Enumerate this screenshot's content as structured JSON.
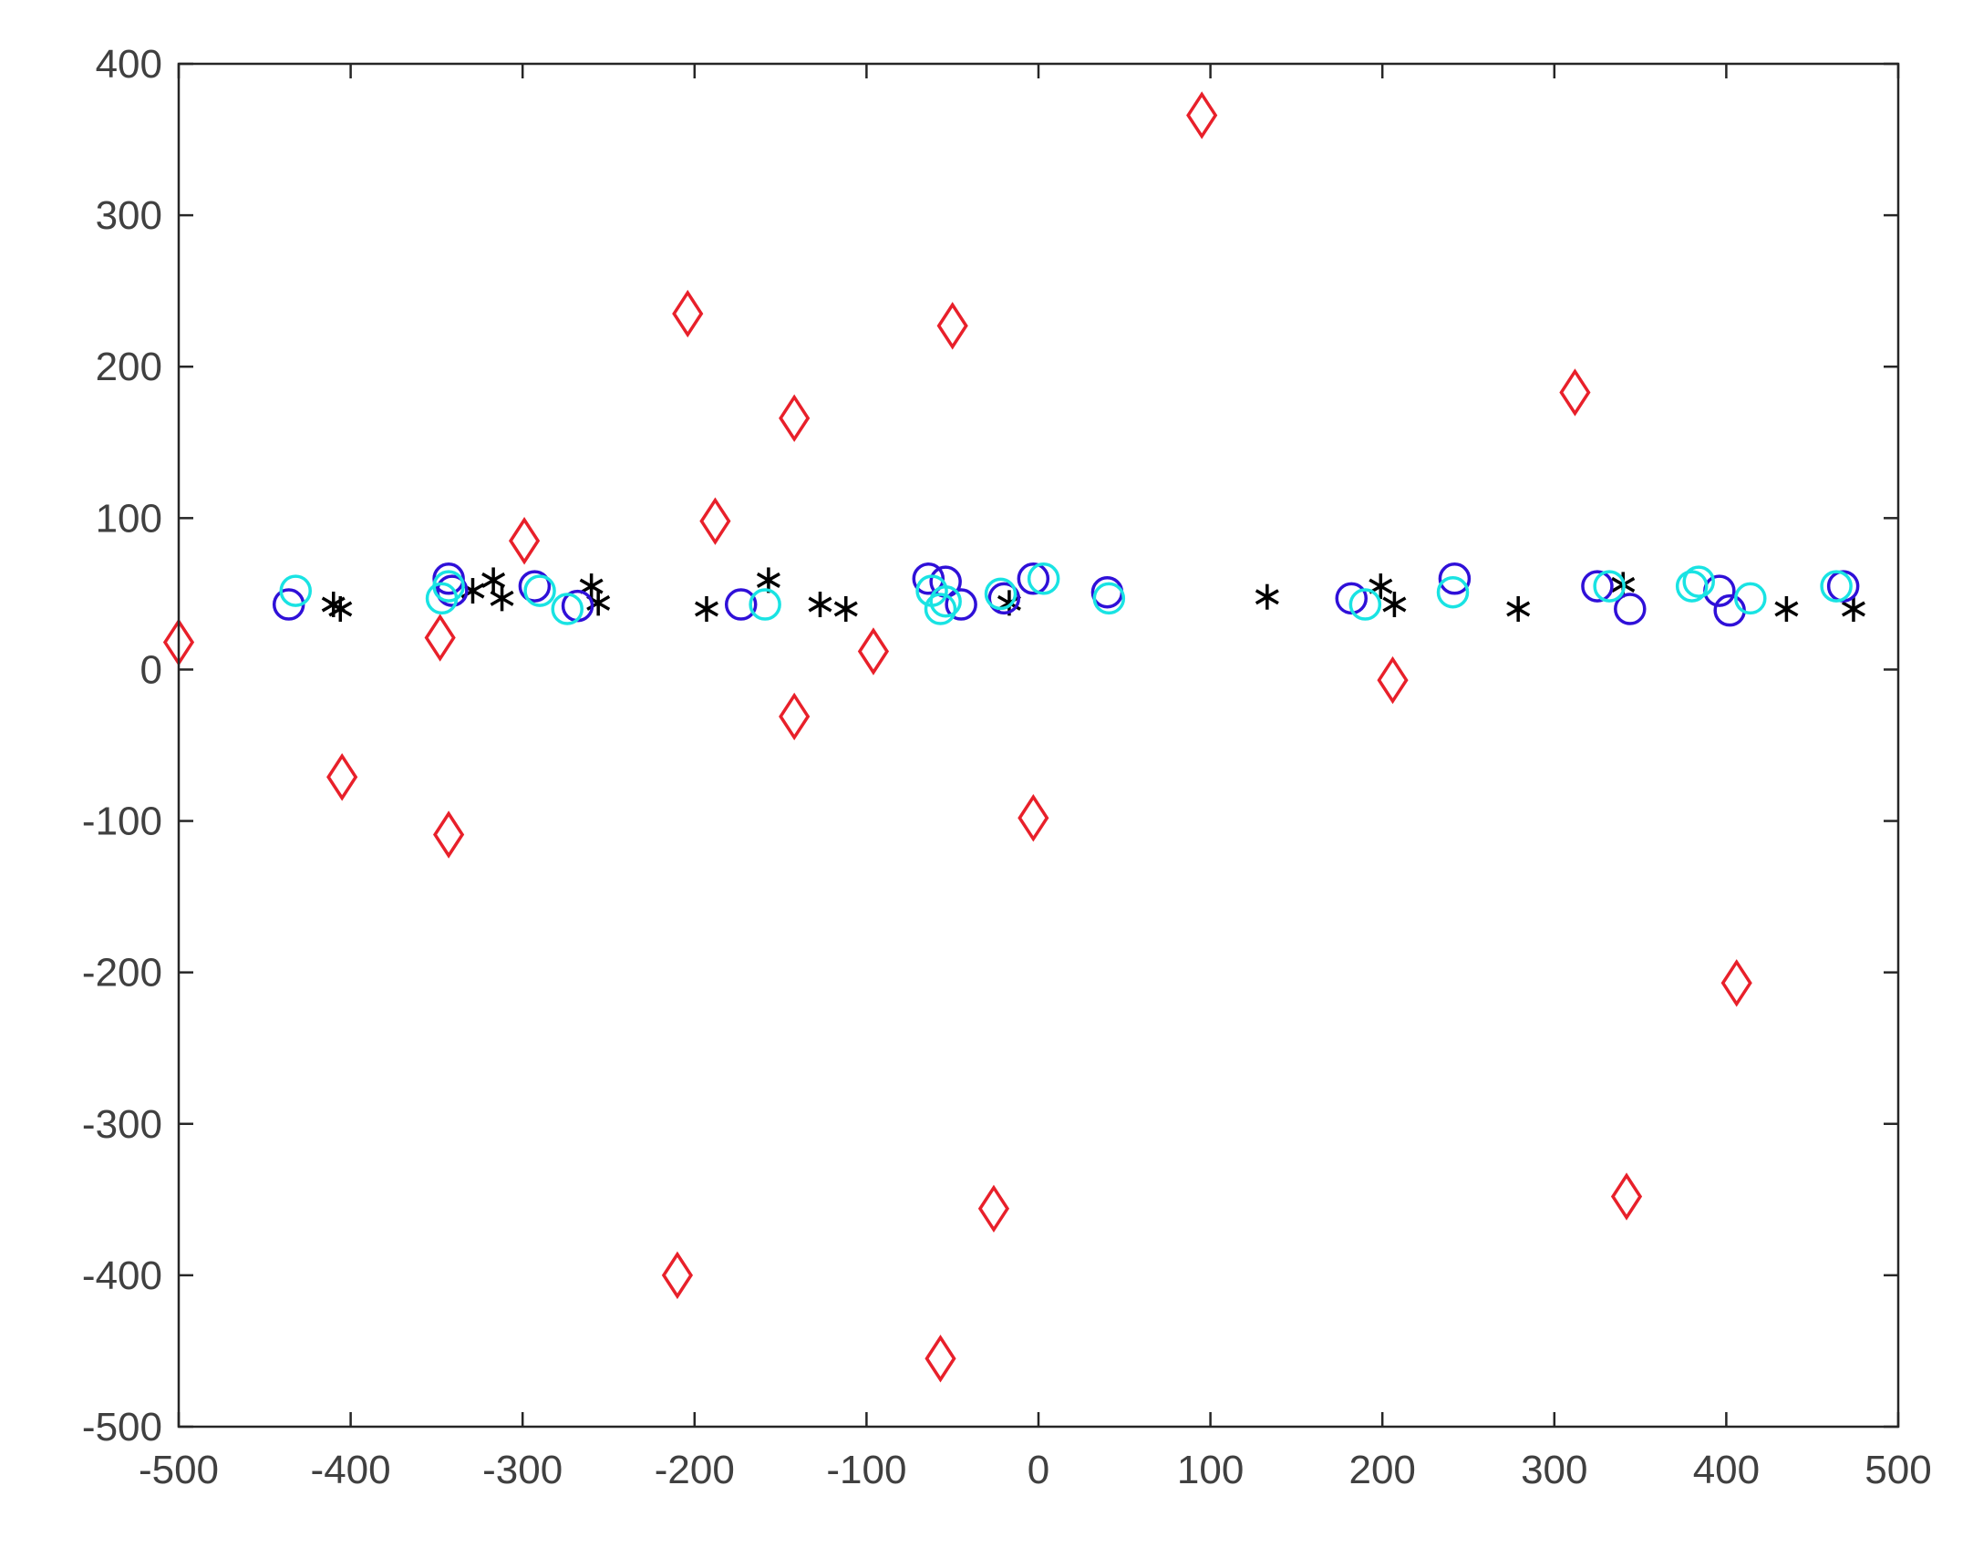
{
  "chart_data": {
    "type": "scatter",
    "xlim": [
      -500,
      500
    ],
    "ylim": [
      -500,
      400
    ],
    "grid": false,
    "legend": "none",
    "x_ticks": [
      -500,
      -400,
      -300,
      -200,
      -100,
      0,
      100,
      200,
      300,
      400,
      500
    ],
    "y_ticks": [
      -500,
      -400,
      -300,
      -200,
      -100,
      0,
      100,
      200,
      300,
      400
    ],
    "x_tick_labels": [
      "-500",
      "-400",
      "-300",
      "-200",
      "-100",
      "0",
      "100",
      "200",
      "300",
      "400",
      "500"
    ],
    "y_tick_labels": [
      "-500",
      "-400",
      "-300",
      "-200",
      "-100",
      "0",
      "100",
      "200",
      "300",
      "400"
    ],
    "series": [
      {
        "marker": "diamond",
        "color": "#e8202a",
        "points": [
          [
            -500,
            18
          ],
          [
            -405,
            -71
          ],
          [
            -348,
            21
          ],
          [
            -343,
            -109
          ],
          [
            -299,
            85
          ],
          [
            -210,
            -400
          ],
          [
            -204,
            235
          ],
          [
            -188,
            98
          ],
          [
            -142,
            166
          ],
          [
            -142,
            -31
          ],
          [
            -96,
            12
          ],
          [
            -57,
            -455
          ],
          [
            -50,
            227
          ],
          [
            -26,
            -356
          ],
          [
            -3,
            -98
          ],
          [
            95,
            366
          ],
          [
            206,
            -7
          ],
          [
            312,
            183
          ],
          [
            342,
            -348
          ],
          [
            406,
            -207
          ]
        ]
      },
      {
        "marker": "asterisk",
        "color": "#000000",
        "points": [
          [
            -410,
            43
          ],
          [
            -406,
            40
          ],
          [
            -329,
            52
          ],
          [
            -317,
            59
          ],
          [
            -312,
            47
          ],
          [
            -260,
            55
          ],
          [
            -256,
            44
          ],
          [
            -193,
            40
          ],
          [
            -157,
            59
          ],
          [
            -127,
            43
          ],
          [
            -112,
            40
          ],
          [
            -17,
            44
          ],
          [
            133,
            48
          ],
          [
            199,
            55
          ],
          [
            207,
            43
          ],
          [
            279,
            40
          ],
          [
            340,
            56
          ],
          [
            435,
            40
          ],
          [
            474,
            40
          ]
        ]
      },
      {
        "marker": "circle",
        "color": "#2f10d8",
        "points": [
          [
            -436,
            43
          ],
          [
            -343,
            60
          ],
          [
            -341,
            52
          ],
          [
            -293,
            55
          ],
          [
            -268,
            42
          ],
          [
            -173,
            43
          ],
          [
            -64,
            60
          ],
          [
            -54,
            58
          ],
          [
            -45,
            43
          ],
          [
            -20,
            47
          ],
          [
            -3,
            60
          ],
          [
            40,
            51
          ],
          [
            182,
            47
          ],
          [
            242,
            60
          ],
          [
            325,
            55
          ],
          [
            344,
            40
          ],
          [
            396,
            52
          ],
          [
            402,
            39
          ],
          [
            468,
            55
          ]
        ]
      },
      {
        "marker": "circle",
        "color": "#19e3e3",
        "points": [
          [
            -432,
            52
          ],
          [
            -347,
            47
          ],
          [
            -343,
            55
          ],
          [
            -290,
            52
          ],
          [
            -274,
            40
          ],
          [
            -159,
            43
          ],
          [
            -62,
            52
          ],
          [
            -57,
            40
          ],
          [
            -54,
            45
          ],
          [
            -22,
            50
          ],
          [
            3,
            60
          ],
          [
            41,
            47
          ],
          [
            190,
            43
          ],
          [
            241,
            51
          ],
          [
            332,
            55
          ],
          [
            380,
            55
          ],
          [
            384,
            58
          ],
          [
            414,
            47
          ],
          [
            464,
            55
          ]
        ]
      }
    ]
  }
}
